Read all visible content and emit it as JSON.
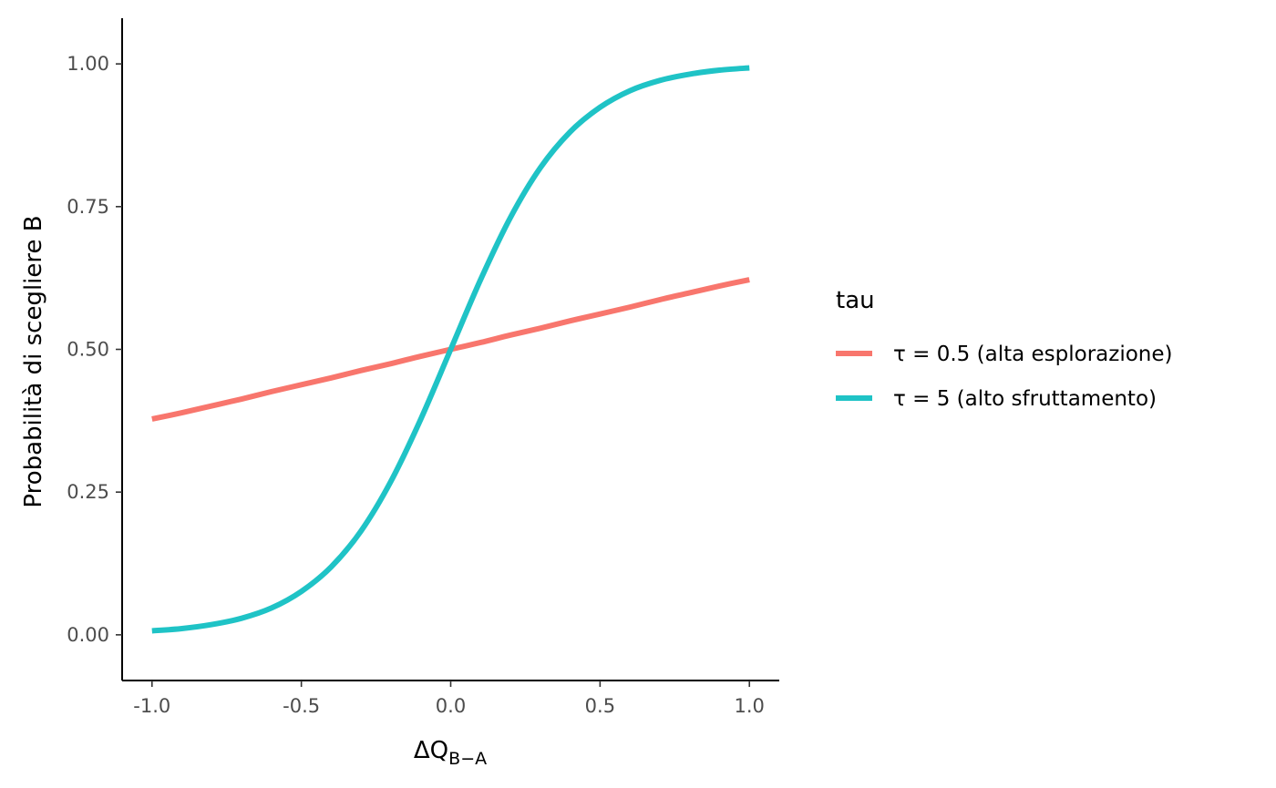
{
  "chart_data": {
    "type": "line",
    "title": "",
    "xlabel": "ΔQ",
    "xlabel_sub": "B−A",
    "ylabel": "Probabilità di scegliere B",
    "xlim": [
      -1.1,
      1.1
    ],
    "ylim": [
      -0.08,
      1.08
    ],
    "x_ticks": [
      -1.0,
      -0.5,
      0.0,
      0.5,
      1.0
    ],
    "x_tick_labels": [
      "-1.0",
      "-0.5",
      "0.0",
      "0.5",
      "1.0"
    ],
    "y_ticks": [
      0.0,
      0.25,
      0.5,
      0.75,
      1.0
    ],
    "y_tick_labels": [
      "0.00",
      "0.25",
      "0.50",
      "0.75",
      "1.00"
    ],
    "grid": false,
    "legend": {
      "title": "tau",
      "placement": "right"
    },
    "x": [
      -1.0,
      -0.9,
      -0.8,
      -0.7,
      -0.6,
      -0.5,
      -0.4,
      -0.3,
      -0.2,
      -0.1,
      0.0,
      0.1,
      0.2,
      0.3,
      0.4,
      0.5,
      0.6,
      0.7,
      0.8,
      0.9,
      1.0
    ],
    "series": [
      {
        "name": "τ = 0.5 (alta esplorazione)",
        "color": "#f8766d",
        "values": [
          0.378,
          0.389,
          0.401,
          0.413,
          0.426,
          0.438,
          0.45,
          0.463,
          0.475,
          0.488,
          0.5,
          0.512,
          0.525,
          0.537,
          0.55,
          0.562,
          0.574,
          0.587,
          0.599,
          0.611,
          0.622
        ]
      },
      {
        "name": "τ = 5 (alto sfruttamento)",
        "color": "#1fc3c6",
        "values": [
          0.007,
          0.011,
          0.018,
          0.029,
          0.047,
          0.076,
          0.119,
          0.182,
          0.269,
          0.378,
          0.5,
          0.622,
          0.731,
          0.818,
          0.881,
          0.924,
          0.953,
          0.971,
          0.982,
          0.989,
          0.993
        ]
      }
    ]
  }
}
